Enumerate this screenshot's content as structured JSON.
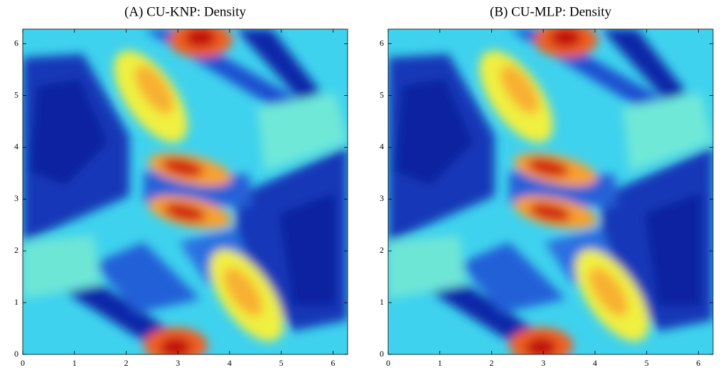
{
  "chart_data": [
    {
      "type": "contour",
      "title": "(A) CU-KNP: Density",
      "xlim": [
        0,
        6.2832
      ],
      "ylim": [
        0,
        6.2832
      ],
      "xticks": [
        0,
        1,
        2,
        3,
        4,
        5,
        6
      ],
      "yticks": [
        0,
        1,
        2,
        3,
        4,
        5,
        6
      ]
    },
    {
      "type": "contour",
      "title": "(B) CU-MLP: Density",
      "xlim": [
        0,
        6.2832
      ],
      "ylim": [
        0,
        6.2832
      ],
      "xticks": [
        0,
        1,
        2,
        3,
        4,
        5,
        6
      ],
      "yticks": [
        0,
        1,
        2,
        3,
        4,
        5,
        6
      ]
    }
  ]
}
